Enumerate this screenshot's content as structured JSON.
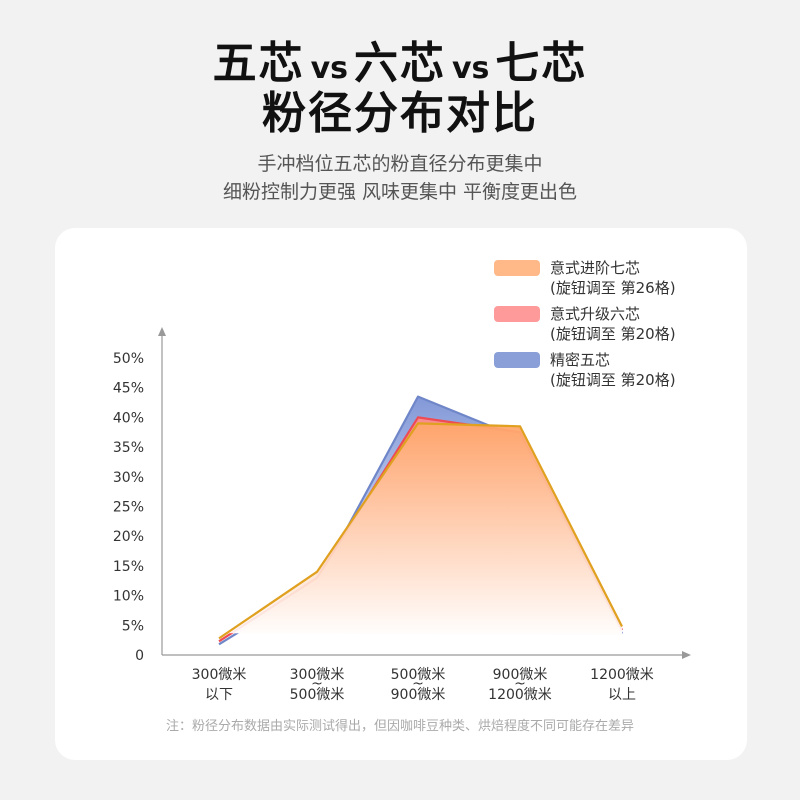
{
  "header": {
    "title_parts": [
      "五芯",
      "vs",
      "六芯",
      "vs",
      "七芯"
    ],
    "title_line2": "粉径分布对比",
    "subtitle_line1": "手冲档位五芯的粉直径分布更集中",
    "subtitle_line2": "细粉控制力更强 风味更集中 平衡度更出色"
  },
  "chart_data": {
    "type": "area",
    "categories": [
      [
        "300微米",
        "以下"
      ],
      [
        "300微米",
        "~",
        "500微米"
      ],
      [
        "500微米",
        "~",
        "900微米"
      ],
      [
        "900微米",
        "~",
        "1200微米"
      ],
      [
        "1200微米",
        "以上"
      ]
    ],
    "y_ticks": [
      "0",
      "5%",
      "10%",
      "15%",
      "20%",
      "25%",
      "30%",
      "35%",
      "40%",
      "45%",
      "50%"
    ],
    "ylim": [
      0,
      50
    ],
    "series": [
      {
        "name_line1": "精密五芯",
        "name_line2": "(旋钮调至 第20格)",
        "color": "#8a9fd8",
        "line_color": "#6f86c8",
        "values": [
          1.8,
          12,
          43.5,
          36.5,
          3.6
        ]
      },
      {
        "name_line1": "意式升级六芯",
        "name_line2": "(旋钮调至 第20格)",
        "color": "#ff9a9a",
        "line_color": "#ee4b55",
        "values": [
          2.3,
          13,
          40,
          37.5,
          4.2
        ]
      },
      {
        "name_line1": "意式进阶七芯",
        "name_line2": "(旋钮调至 第26格)",
        "color": "#ffb888",
        "line_color": "#e0a020",
        "values": [
          2.8,
          14,
          39,
          38.5,
          4.8
        ]
      }
    ],
    "legend_position": "top-right",
    "grid": false
  },
  "footnote": "注：粉径分布数据由实际测试得出，但因咖啡豆种类、烘焙程度不同可能存在差异"
}
